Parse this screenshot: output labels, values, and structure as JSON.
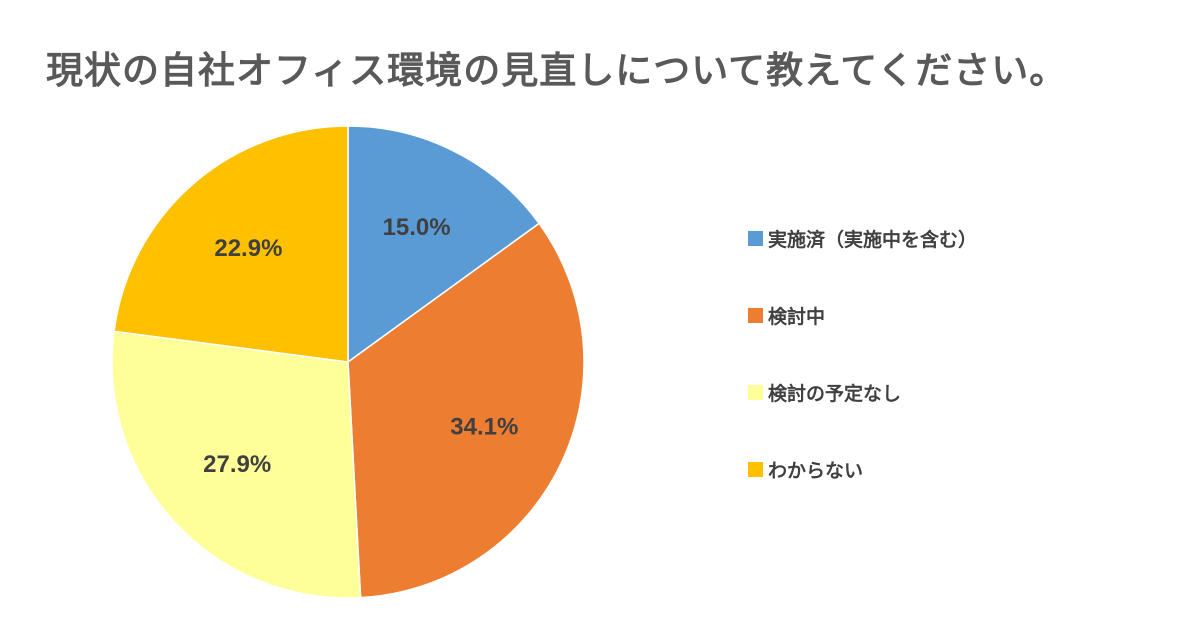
{
  "chart_data": {
    "type": "pie",
    "title": "現状の自社オフィス環境の見直しについて教えてください。",
    "slices": [
      {
        "label": "実施済（実施中を含む）",
        "value": 15.0,
        "value_label": "15.0%",
        "color": "#5b9bd5"
      },
      {
        "label": "検討中",
        "value": 34.1,
        "value_label": "34.1%",
        "color": "#ed7d31"
      },
      {
        "label": "検討の予定なし",
        "value": 27.9,
        "value_label": "27.9%",
        "color": "#ffff99"
      },
      {
        "label": "わからない",
        "value": 22.9,
        "value_label": "22.9%",
        "color": "#ffc000"
      }
    ],
    "legend_position": "right"
  }
}
